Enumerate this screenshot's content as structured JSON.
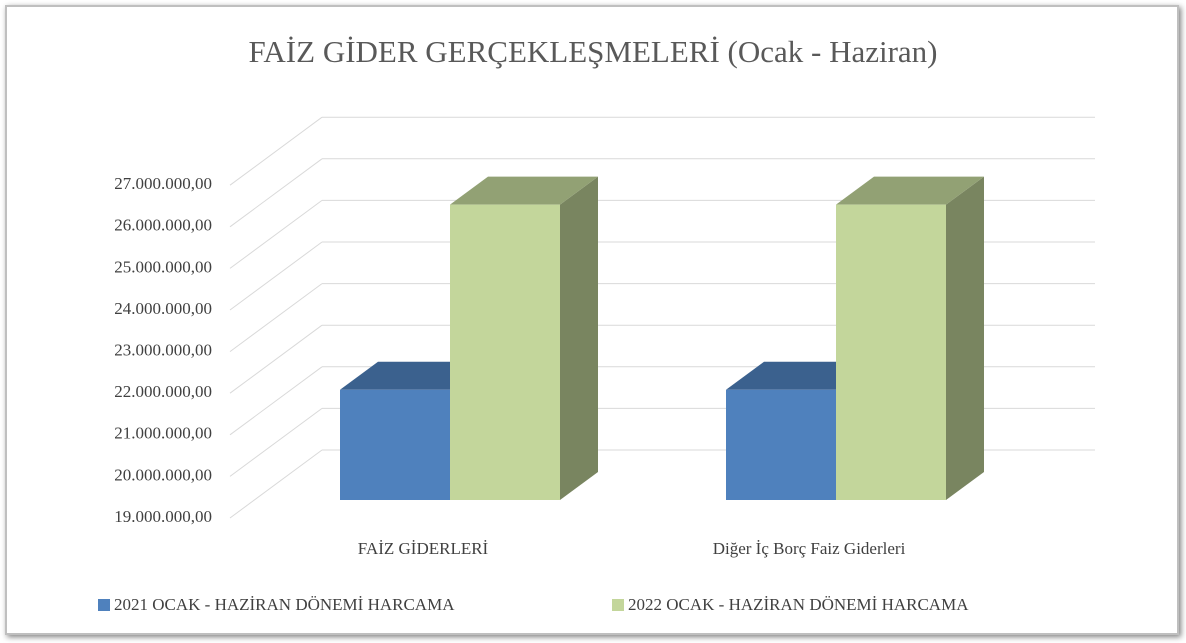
{
  "chart_data": {
    "type": "bar3d",
    "title": "FAİZ GİDER GERÇEKLEŞMELERİ (Ocak - Haziran)",
    "categories": [
      "FAİZ GİDERLERİ",
      "Diğer İç Borç Faiz Giderleri"
    ],
    "series": [
      {
        "name": "2021 OCAK - HAZİRAN DÖNEMİ HARCAMA",
        "color": "#4f81bd",
        "values": [
          21650000,
          21650000
        ]
      },
      {
        "name": "2022 OCAK - HAZİRAN DÖNEMİ HARCAMA",
        "color": "#c3d69b",
        "values": [
          26100000,
          26100000
        ]
      }
    ],
    "ylim": [
      19000000,
      27000000
    ],
    "yticks": [
      {
        "value": 19000000,
        "label": "19.000.000,00"
      },
      {
        "value": 20000000,
        "label": "20.000.000,00"
      },
      {
        "value": 21000000,
        "label": "21.000.000,00"
      },
      {
        "value": 22000000,
        "label": "22.000.000,00"
      },
      {
        "value": 23000000,
        "label": "23.000.000,00"
      },
      {
        "value": 24000000,
        "label": "24.000.000,00"
      },
      {
        "value": 25000000,
        "label": "25.000.000,00"
      },
      {
        "value": 26000000,
        "label": "26.000.000,00"
      },
      {
        "value": 27000000,
        "label": "27.000.000,00"
      }
    ],
    "grid": true,
    "legend": "bottom"
  }
}
